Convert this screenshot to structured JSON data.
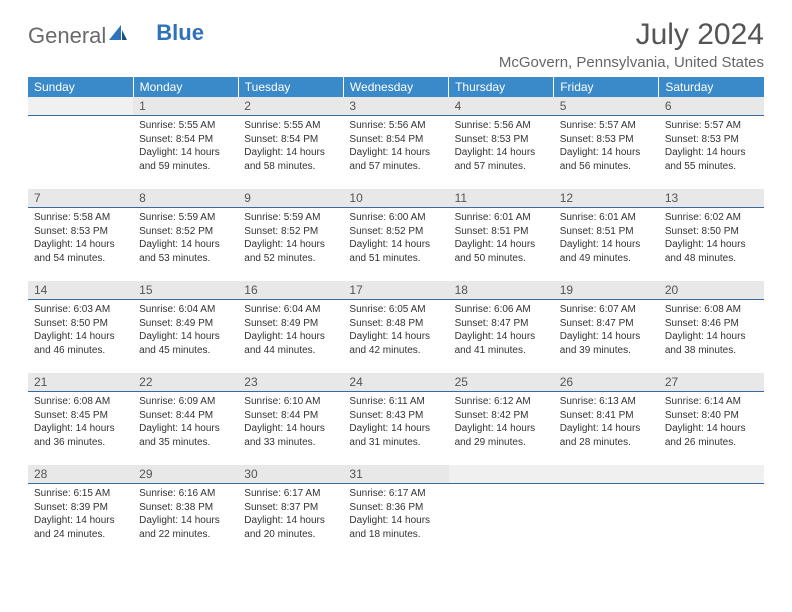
{
  "logo": {
    "text_general": "General",
    "text_blue": "Blue"
  },
  "header": {
    "month_title": "July 2024",
    "location": "McGovern, Pennsylvania, United States"
  },
  "styling": {
    "header_bg": "#3a89c9",
    "header_text": "#ffffff",
    "daynum_bg": "#e8e8e8",
    "daynum_border": "#3a6a9a",
    "body_text": "#333333",
    "page_bg": "#ffffff",
    "logo_blue": "#2f72b8",
    "logo_gray": "#6a6a6a",
    "font_family": "Arial",
    "title_fontsize": 30,
    "location_fontsize": 15,
    "header_cell_fontsize": 12,
    "daynum_fontsize": 12,
    "body_fontsize": 10
  },
  "weekdays": [
    "Sunday",
    "Monday",
    "Tuesday",
    "Wednesday",
    "Thursday",
    "Friday",
    "Saturday"
  ],
  "weeks": [
    [
      null,
      {
        "n": "1",
        "sr": "Sunrise: 5:55 AM",
        "ss": "Sunset: 8:54 PM",
        "dl1": "Daylight: 14 hours",
        "dl2": "and 59 minutes."
      },
      {
        "n": "2",
        "sr": "Sunrise: 5:55 AM",
        "ss": "Sunset: 8:54 PM",
        "dl1": "Daylight: 14 hours",
        "dl2": "and 58 minutes."
      },
      {
        "n": "3",
        "sr": "Sunrise: 5:56 AM",
        "ss": "Sunset: 8:54 PM",
        "dl1": "Daylight: 14 hours",
        "dl2": "and 57 minutes."
      },
      {
        "n": "4",
        "sr": "Sunrise: 5:56 AM",
        "ss": "Sunset: 8:53 PM",
        "dl1": "Daylight: 14 hours",
        "dl2": "and 57 minutes."
      },
      {
        "n": "5",
        "sr": "Sunrise: 5:57 AM",
        "ss": "Sunset: 8:53 PM",
        "dl1": "Daylight: 14 hours",
        "dl2": "and 56 minutes."
      },
      {
        "n": "6",
        "sr": "Sunrise: 5:57 AM",
        "ss": "Sunset: 8:53 PM",
        "dl1": "Daylight: 14 hours",
        "dl2": "and 55 minutes."
      }
    ],
    [
      {
        "n": "7",
        "sr": "Sunrise: 5:58 AM",
        "ss": "Sunset: 8:53 PM",
        "dl1": "Daylight: 14 hours",
        "dl2": "and 54 minutes."
      },
      {
        "n": "8",
        "sr": "Sunrise: 5:59 AM",
        "ss": "Sunset: 8:52 PM",
        "dl1": "Daylight: 14 hours",
        "dl2": "and 53 minutes."
      },
      {
        "n": "9",
        "sr": "Sunrise: 5:59 AM",
        "ss": "Sunset: 8:52 PM",
        "dl1": "Daylight: 14 hours",
        "dl2": "and 52 minutes."
      },
      {
        "n": "10",
        "sr": "Sunrise: 6:00 AM",
        "ss": "Sunset: 8:52 PM",
        "dl1": "Daylight: 14 hours",
        "dl2": "and 51 minutes."
      },
      {
        "n": "11",
        "sr": "Sunrise: 6:01 AM",
        "ss": "Sunset: 8:51 PM",
        "dl1": "Daylight: 14 hours",
        "dl2": "and 50 minutes."
      },
      {
        "n": "12",
        "sr": "Sunrise: 6:01 AM",
        "ss": "Sunset: 8:51 PM",
        "dl1": "Daylight: 14 hours",
        "dl2": "and 49 minutes."
      },
      {
        "n": "13",
        "sr": "Sunrise: 6:02 AM",
        "ss": "Sunset: 8:50 PM",
        "dl1": "Daylight: 14 hours",
        "dl2": "and 48 minutes."
      }
    ],
    [
      {
        "n": "14",
        "sr": "Sunrise: 6:03 AM",
        "ss": "Sunset: 8:50 PM",
        "dl1": "Daylight: 14 hours",
        "dl2": "and 46 minutes."
      },
      {
        "n": "15",
        "sr": "Sunrise: 6:04 AM",
        "ss": "Sunset: 8:49 PM",
        "dl1": "Daylight: 14 hours",
        "dl2": "and 45 minutes."
      },
      {
        "n": "16",
        "sr": "Sunrise: 6:04 AM",
        "ss": "Sunset: 8:49 PM",
        "dl1": "Daylight: 14 hours",
        "dl2": "and 44 minutes."
      },
      {
        "n": "17",
        "sr": "Sunrise: 6:05 AM",
        "ss": "Sunset: 8:48 PM",
        "dl1": "Daylight: 14 hours",
        "dl2": "and 42 minutes."
      },
      {
        "n": "18",
        "sr": "Sunrise: 6:06 AM",
        "ss": "Sunset: 8:47 PM",
        "dl1": "Daylight: 14 hours",
        "dl2": "and 41 minutes."
      },
      {
        "n": "19",
        "sr": "Sunrise: 6:07 AM",
        "ss": "Sunset: 8:47 PM",
        "dl1": "Daylight: 14 hours",
        "dl2": "and 39 minutes."
      },
      {
        "n": "20",
        "sr": "Sunrise: 6:08 AM",
        "ss": "Sunset: 8:46 PM",
        "dl1": "Daylight: 14 hours",
        "dl2": "and 38 minutes."
      }
    ],
    [
      {
        "n": "21",
        "sr": "Sunrise: 6:08 AM",
        "ss": "Sunset: 8:45 PM",
        "dl1": "Daylight: 14 hours",
        "dl2": "and 36 minutes."
      },
      {
        "n": "22",
        "sr": "Sunrise: 6:09 AM",
        "ss": "Sunset: 8:44 PM",
        "dl1": "Daylight: 14 hours",
        "dl2": "and 35 minutes."
      },
      {
        "n": "23",
        "sr": "Sunrise: 6:10 AM",
        "ss": "Sunset: 8:44 PM",
        "dl1": "Daylight: 14 hours",
        "dl2": "and 33 minutes."
      },
      {
        "n": "24",
        "sr": "Sunrise: 6:11 AM",
        "ss": "Sunset: 8:43 PM",
        "dl1": "Daylight: 14 hours",
        "dl2": "and 31 minutes."
      },
      {
        "n": "25",
        "sr": "Sunrise: 6:12 AM",
        "ss": "Sunset: 8:42 PM",
        "dl1": "Daylight: 14 hours",
        "dl2": "and 29 minutes."
      },
      {
        "n": "26",
        "sr": "Sunrise: 6:13 AM",
        "ss": "Sunset: 8:41 PM",
        "dl1": "Daylight: 14 hours",
        "dl2": "and 28 minutes."
      },
      {
        "n": "27",
        "sr": "Sunrise: 6:14 AM",
        "ss": "Sunset: 8:40 PM",
        "dl1": "Daylight: 14 hours",
        "dl2": "and 26 minutes."
      }
    ],
    [
      {
        "n": "28",
        "sr": "Sunrise: 6:15 AM",
        "ss": "Sunset: 8:39 PM",
        "dl1": "Daylight: 14 hours",
        "dl2": "and 24 minutes."
      },
      {
        "n": "29",
        "sr": "Sunrise: 6:16 AM",
        "ss": "Sunset: 8:38 PM",
        "dl1": "Daylight: 14 hours",
        "dl2": "and 22 minutes."
      },
      {
        "n": "30",
        "sr": "Sunrise: 6:17 AM",
        "ss": "Sunset: 8:37 PM",
        "dl1": "Daylight: 14 hours",
        "dl2": "and 20 minutes."
      },
      {
        "n": "31",
        "sr": "Sunrise: 6:17 AM",
        "ss": "Sunset: 8:36 PM",
        "dl1": "Daylight: 14 hours",
        "dl2": "and 18 minutes."
      },
      null,
      null,
      null
    ]
  ]
}
